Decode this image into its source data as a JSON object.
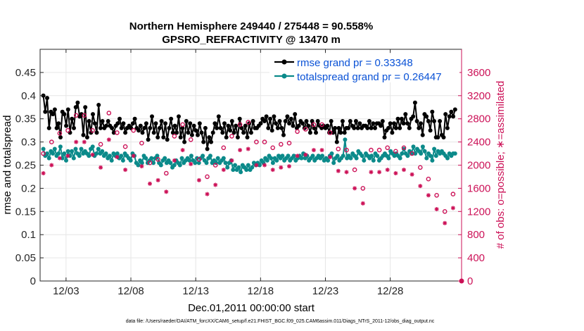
{
  "chart_data": {
    "type": "line",
    "title_line1": "Northern Hemisphere 249440 / 275448 = 90.558%",
    "title_line2": "GPSRO_REFRACTIVITY @ 13470 m",
    "xlabel": "Dec.01,2011 00:00:00 start",
    "ylabel_left": "rmse and totalspread",
    "ylabel_right": "# of obs: o=possible; ∗=assimilated",
    "footer": "data file: /Users/raeder/DAI/ATM_forcXX/CAM6_setup/f.e21.FHIST_BGC.f09_025.CAM6assim.011/Diags_NTrS_2011-12/obs_diag_output.nc",
    "xlim": [
      0,
      32.5
    ],
    "ylim_left": [
      0,
      0.5
    ],
    "ylim_right": [
      0,
      4000
    ],
    "x_ticks": [
      {
        "x": 2,
        "label": "12/03"
      },
      {
        "x": 7,
        "label": "12/08"
      },
      {
        "x": 12,
        "label": "12/13"
      },
      {
        "x": 17,
        "label": "12/18"
      },
      {
        "x": 22,
        "label": "12/23"
      },
      {
        "x": 27,
        "label": "12/28"
      }
    ],
    "y_ticks_left": [
      "0",
      "0.05",
      "0.1",
      "0.15",
      "0.2",
      "0.25",
      "0.3",
      "0.35",
      "0.4",
      "0.45"
    ],
    "y_ticks_right": [
      "0",
      "400",
      "800",
      "1200",
      "1600",
      "2000",
      "2400",
      "2800",
      "3200",
      "3600"
    ],
    "grid": true,
    "legend_position": "top-right",
    "colors": {
      "rmse": "#000000",
      "spread": "#0b8a8a",
      "obs": "#cc1157",
      "legend_text": "#0a52d6",
      "grid": "#e6e6e6"
    },
    "series": [
      {
        "name": "rmse grand pr = 0.33348",
        "key": "rmse",
        "values": [
          0.4,
          0.365,
          0.395,
          0.33,
          0.365,
          0.36,
          0.37,
          0.33,
          0.34,
          0.31,
          0.365,
          0.36,
          0.335,
          0.37,
          0.32,
          0.35,
          0.33,
          0.375,
          0.385,
          0.355,
          0.36,
          0.315,
          0.375,
          0.31,
          0.345,
          0.32,
          0.36,
          0.34,
          0.32,
          0.38,
          0.33,
          0.345,
          0.33,
          0.335,
          0.345,
          0.335,
          0.33,
          0.32,
          0.335,
          0.34,
          0.35,
          0.33,
          0.34,
          0.32,
          0.33,
          0.335,
          0.33,
          0.34,
          0.35,
          0.33,
          0.325,
          0.335,
          0.32,
          0.33,
          0.34,
          0.305,
          0.33,
          0.355,
          0.32,
          0.34,
          0.31,
          0.33,
          0.345,
          0.31,
          0.34,
          0.305,
          0.33,
          0.35,
          0.32,
          0.335,
          0.32,
          0.355,
          0.31,
          0.33,
          0.3,
          0.345,
          0.32,
          0.34,
          0.315,
          0.335,
          0.325,
          0.315,
          0.34,
          0.32,
          0.3,
          0.33,
          0.285,
          0.31,
          0.3,
          0.32,
          0.34,
          0.33,
          0.355,
          0.33,
          0.32,
          0.34,
          0.31,
          0.335,
          0.325,
          0.345,
          0.32,
          0.335,
          0.31,
          0.35,
          0.33,
          0.32,
          0.335,
          0.31,
          0.34,
          0.32,
          0.345,
          0.33,
          0.33,
          0.335,
          0.34,
          0.35,
          0.345,
          0.355,
          0.33,
          0.35,
          0.325,
          0.355,
          0.34,
          0.33,
          0.345,
          0.33,
          0.315,
          0.345,
          0.355,
          0.34,
          0.35,
          0.335,
          0.36,
          0.33,
          0.335,
          0.345,
          0.34,
          0.33,
          0.345,
          0.335,
          0.32,
          0.345,
          0.33,
          0.32,
          0.345,
          0.335,
          0.33,
          0.335,
          0.33,
          0.335,
          0.32,
          0.345,
          0.32,
          0.33,
          0.3,
          0.33,
          0.32,
          0.345,
          0.32,
          0.33,
          0.33,
          0.345,
          0.335,
          0.33,
          0.345,
          0.33,
          0.34,
          0.33,
          0.335,
          0.335,
          0.33,
          0.345,
          0.33,
          0.34,
          0.33,
          0.34,
          0.34,
          0.335,
          0.345,
          0.31,
          0.325,
          0.33,
          0.34,
          0.32,
          0.34,
          0.33,
          0.35,
          0.33,
          0.35,
          0.34,
          0.36,
          0.34,
          0.33,
          0.35,
          0.355,
          0.385,
          0.345,
          0.33,
          0.34,
          0.315,
          0.36,
          0.355,
          0.345,
          0.325,
          0.365,
          0.345,
          0.31,
          0.31,
          0.345,
          0.315,
          0.31,
          0.36,
          0.33,
          0.355,
          0.365,
          0.355,
          0.37
        ]
      },
      {
        "name": "totalspread grand pr = 0.26447",
        "key": "spread",
        "values": [
          0.285,
          0.27,
          0.275,
          0.265,
          0.28,
          0.275,
          0.285,
          0.27,
          0.275,
          0.29,
          0.265,
          0.275,
          0.26,
          0.28,
          0.27,
          0.28,
          0.265,
          0.285,
          0.275,
          0.27,
          0.285,
          0.275,
          0.28,
          0.275,
          0.27,
          0.285,
          0.29,
          0.27,
          0.275,
          0.285,
          0.275,
          0.28,
          0.27,
          0.275,
          0.265,
          0.27,
          0.26,
          0.275,
          0.27,
          0.275,
          0.265,
          0.27,
          0.26,
          0.275,
          0.27,
          0.265,
          0.26,
          0.275,
          0.27,
          0.255,
          0.25,
          0.26,
          0.255,
          0.27,
          0.265,
          0.255,
          0.26,
          0.265,
          0.255,
          0.265,
          0.27,
          0.255,
          0.25,
          0.26,
          0.265,
          0.255,
          0.26,
          0.255,
          0.245,
          0.25,
          0.26,
          0.255,
          0.25,
          0.265,
          0.255,
          0.26,
          0.265,
          0.26,
          0.27,
          0.26,
          0.255,
          0.265,
          0.255,
          0.265,
          0.27,
          0.26,
          0.255,
          0.265,
          0.27,
          0.255,
          0.26,
          0.255,
          0.265,
          0.255,
          0.26,
          0.265,
          0.255,
          0.245,
          0.255,
          0.26,
          0.24,
          0.25,
          0.24,
          0.245,
          0.235,
          0.25,
          0.245,
          0.24,
          0.25,
          0.24,
          0.245,
          0.255,
          0.25,
          0.255,
          0.25,
          0.26,
          0.255,
          0.265,
          0.26,
          0.27,
          0.265,
          0.255,
          0.265,
          0.26,
          0.27,
          0.265,
          0.27,
          0.26,
          0.265,
          0.27,
          0.26,
          0.265,
          0.27,
          0.26,
          0.265,
          0.27,
          0.265,
          0.275,
          0.265,
          0.27,
          0.26,
          0.265,
          0.27,
          0.26,
          0.265,
          0.27,
          0.265,
          0.27,
          0.26,
          0.265,
          0.26,
          0.27,
          0.275,
          0.255,
          0.265,
          0.27,
          0.26,
          0.265,
          0.27,
          0.305,
          0.265,
          0.27,
          0.265,
          0.275,
          0.27,
          0.265,
          0.28,
          0.275,
          0.27,
          0.26,
          0.275,
          0.27,
          0.265,
          0.27,
          0.26,
          0.275,
          0.27,
          0.26,
          0.265,
          0.27,
          0.275,
          0.27,
          0.265,
          0.28,
          0.275,
          0.27,
          0.275,
          0.27,
          0.265,
          0.275,
          0.285,
          0.275,
          0.27,
          0.28,
          0.275,
          0.29,
          0.275,
          0.285,
          0.28,
          0.275,
          0.29,
          0.28,
          0.265,
          0.275,
          0.27,
          0.26,
          0.285,
          0.27,
          0.28,
          0.275,
          0.28,
          0.275,
          0.27,
          0.265,
          0.275,
          0.27,
          0.275,
          0.275
        ]
      },
      {
        "name": "o=possible",
        "key": "possible",
        "values": [
          2200,
          2520,
          2600,
          2680,
          2400,
          2320,
          2760,
          2620,
          2550,
          2480,
          2700,
          2660,
          2600,
          2560,
          2500,
          2560,
          2860,
          2740,
          2680,
          2560,
          2860,
          2700,
          2600,
          2440,
          2600,
          2800,
          2500,
          2380,
          2360,
          2460,
          2560,
          2650,
          2900,
          2500,
          2740,
          2480,
          2560,
          2200,
          2380,
          2360,
          2320,
          2580,
          2380,
          2500,
          2600,
          2220,
          2560,
          2460,
          2380,
          2440,
          2040,
          1940,
          2040,
          2120,
          1960,
          1880,
          2100,
          2000,
          1800,
          1740,
          1860,
          2200,
          2440,
          2400,
          2500,
          2660,
          2520,
          2480,
          2700,
          2620,
          2500,
          2600,
          2440,
          2300,
          2280,
          2380,
          2100,
          2180,
          2000,
          1900,
          1800,
          1700,
          1820,
          1860,
          2000,
          1920,
          2020,
          2180,
          2300,
          2460,
          2600,
          2380,
          2500,
          2680,
          2800,
          2900,
          2700,
          2800,
          2900,
          2820,
          2740,
          2400,
          2480,
          2560,
          2400,
          2320,
          2280,
          2200,
          2400,
          2300,
          2220,
          2160,
          2300,
          2220,
          2200,
          2400,
          2360,
          2240,
          2180,
          2300,
          2380,
          2280,
          2480,
          2500,
          2580,
          2440,
          2520,
          2540,
          2620,
          2500,
          2440,
          2460,
          2700,
          2580,
          2800,
          2900,
          2700,
          2800,
          2700,
          2600,
          2560,
          2400,
          2320,
          2400,
          2280,
          2160,
          2220,
          2300,
          2260,
          2200,
          2160,
          1980,
          1920,
          1800,
          1700,
          1660,
          1600,
          1680,
          2000,
          2220,
          2260,
          2300,
          2380,
          2300,
          2260,
          2200,
          2280,
          2220,
          2300,
          2160,
          2200,
          2260,
          2240,
          2300,
          2200,
          2400,
          2300,
          2220,
          2160,
          2280,
          2200,
          2100,
          2060,
          2000,
          1960,
          2040,
          1900,
          1840,
          1760,
          1700,
          1600,
          1560,
          1480,
          1400,
          1560,
          1300,
          1200,
          1400,
          1260,
          1380,
          1500,
          1660
        ]
      },
      {
        "name": "∗=assimilated",
        "key": "assimilated",
        "values": [
          1860,
          2100,
          2180,
          2260,
          2000,
          1960,
          2320,
          2200,
          2120,
          2060,
          2260,
          2240,
          2160,
          2140,
          2080,
          2100,
          2400,
          2280,
          2240,
          2140,
          2400,
          2240,
          2180,
          2040,
          2180,
          2360,
          2080,
          1980,
          1960,
          2040,
          2140,
          2200,
          2440,
          2080,
          2300,
          2060,
          2140,
          1820,
          1980,
          1960,
          1920,
          2160,
          1980,
          2080,
          2160,
          1840,
          2120,
          2040,
          1980,
          2020,
          1680,
          1600,
          1680,
          1760,
          1620,
          1560,
          1740,
          1660,
          1480,
          1420,
          1540,
          1820,
          2040,
          2000,
          2080,
          2220,
          2100,
          2060,
          2260,
          2180,
          2080,
          2160,
          2020,
          1900,
          1880,
          1980,
          1740,
          1800,
          1660,
          1580,
          1500,
          1400,
          1500,
          1540,
          1660,
          1600,
          1680,
          1820,
          1920,
          2040,
          2180,
          1980,
          2080,
          2240,
          2340,
          2420,
          2260,
          2340,
          2420,
          2360,
          2280,
          2000,
          2060,
          2140,
          2000,
          1940,
          1900,
          1840,
          2000,
          1920,
          1840,
          1800,
          1920,
          1860,
          1840,
          2000,
          1960,
          1860,
          1820,
          1920,
          1980,
          1900,
          2060,
          2080,
          2160,
          2040,
          2100,
          2120,
          2180,
          2080,
          2040,
          2060,
          2260,
          2160,
          2340,
          2420,
          2260,
          2340,
          2260,
          2180,
          2140,
          2000,
          1940,
          2000,
          1900,
          1800,
          1860,
          1920,
          1880,
          1840,
          1800,
          1660,
          1600,
          1500,
          1420,
          1380,
          1340,
          1400,
          1680,
          1860,
          1880,
          1920,
          1980,
          1920,
          1880,
          1840,
          1900,
          1860,
          1920,
          1800,
          1840,
          1880,
          1860,
          1920,
          1840,
          2000,
          1920,
          1860,
          1800,
          1900,
          1840,
          1760,
          1720,
          1680,
          1640,
          1700,
          1580,
          1540,
          1480,
          1420,
          1340,
          1300,
          1240,
          1180,
          1300,
          1080,
          1000,
          1160,
          1060,
          1140,
          1260,
          1380
        ]
      }
    ]
  }
}
